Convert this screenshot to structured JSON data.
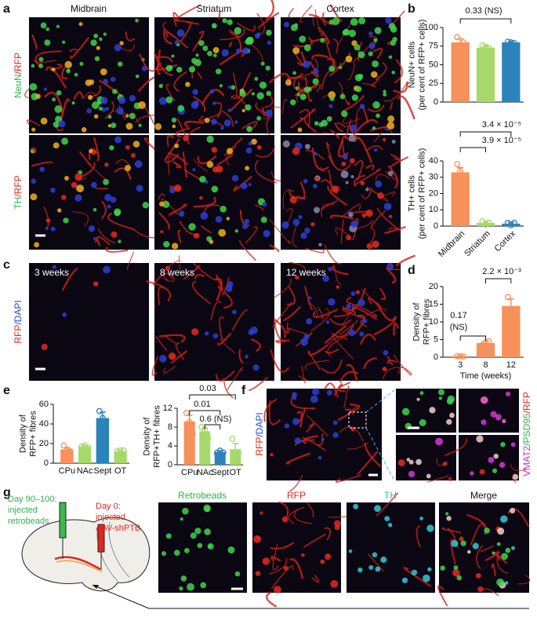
{
  "letters": [
    "a",
    "b",
    "c",
    "d",
    "e",
    "f",
    "g"
  ],
  "panel_a": {
    "columns": [
      "Midbrain",
      "Striatum",
      "Cortex"
    ],
    "rows": [
      [
        "NeuN",
        "/RFP"
      ],
      [
        "TH",
        "/RFP"
      ]
    ]
  },
  "panel_c": {
    "times": [
      "3 weeks",
      "8 weeks",
      "12 weeks"
    ],
    "row": [
      "RFP",
      "/DAPI"
    ]
  },
  "panel_f": {
    "left": [
      "RFP",
      "/DAPI"
    ],
    "right": [
      "VMAT2",
      "/PSD95",
      "/RFP"
    ]
  },
  "panel_g": {
    "retro": [
      "Day 90–100:",
      "injected",
      "retrobeads"
    ],
    "aav": [
      "Day 0:",
      "injected",
      "AAV-shPTB"
    ],
    "channels": [
      "Retrobeads",
      "RFP",
      "TH",
      "Merge"
    ]
  },
  "chart_data": [
    {
      "type": "bar",
      "ylabel": [
        "NeuN+ cells",
        "(per cent of RFP+ cells)"
      ],
      "categories": [
        null,
        null,
        null
      ],
      "values": [
        80,
        73,
        80
      ],
      "errors": [
        5,
        3,
        1
      ],
      "points": [
        [
          87,
          73,
          80
        ],
        [
          76,
          74,
          72
        ],
        [
          81,
          80,
          79
        ]
      ],
      "colors": [
        "#f7905a",
        "#a6d96a",
        "#2b83ba"
      ],
      "ylim": [
        0,
        100
      ],
      "yticks": [
        0,
        25,
        50,
        75,
        100
      ],
      "annotations": [
        "0.33 (NS)"
      ]
    },
    {
      "type": "bar",
      "ylabel": [
        "TH+ cells",
        "(per cent of RFP+ cells)"
      ],
      "categories": [
        "Midbrain",
        "Striatum",
        "Cortex"
      ],
      "values": [
        33,
        2,
        1.5
      ],
      "errors": [
        3,
        1,
        0.8
      ],
      "points": [
        [
          38,
          34,
          28
        ],
        [
          3,
          1,
          2
        ],
        [
          2,
          0.5,
          2
        ]
      ],
      "colors": [
        "#f7905a",
        "#a6d96a",
        "#2b83ba"
      ],
      "ylim": [
        0,
        40
      ],
      "yticks": [
        0,
        10,
        20,
        30,
        40
      ],
      "annotations": [
        "3.4 × 10⁻⁵",
        "3.9 × 10⁻⁵"
      ]
    },
    {
      "type": "bar",
      "ylabel": [
        "Density of",
        "RFP+ fibres"
      ],
      "xlabel": "Time (weeks)",
      "categories": [
        "3",
        "8",
        "12"
      ],
      "values": [
        0.3,
        4,
        14.5
      ],
      "errors": [
        0.2,
        0.6,
        2
      ],
      "points": [
        [
          0.3,
          0.3,
          0.2
        ],
        [
          3.5,
          4,
          4.5
        ],
        [
          17,
          13,
          13
        ]
      ],
      "colors": [
        "#f7905a",
        "#f7905a",
        "#f7905a"
      ],
      "ylim": [
        0,
        20
      ],
      "yticks": [
        0,
        5,
        10,
        15,
        20
      ],
      "annotations": [
        "0.17",
        "(NS)",
        "2.2 × 10⁻³"
      ]
    },
    {
      "type": "bar",
      "ylabel": [
        "Density of",
        "RFP+ fibres"
      ],
      "categories": [
        "CPu",
        "NAc",
        "Sept",
        "OT"
      ],
      "values": [
        14,
        17,
        46,
        12
      ],
      "errors": [
        2,
        1,
        6,
        1
      ],
      "points": [
        [
          18,
          13,
          12
        ],
        [
          17,
          18,
          16
        ],
        [
          53,
          46,
          38
        ],
        [
          12,
          13,
          13
        ]
      ],
      "colors": [
        "#f7905a",
        "#a6d96a",
        "#2b83ba",
        "#a6d96a"
      ],
      "ylim": [
        0,
        60
      ],
      "yticks": [
        0,
        20,
        40,
        60
      ],
      "annotations": []
    },
    {
      "type": "bar",
      "ylabel": [
        "Density of",
        "RFP+TH+ fibres"
      ],
      "categories": [
        "CPu",
        "NAc",
        "Sept",
        "OT"
      ],
      "values": [
        9.2,
        7.1,
        2.7,
        3.3
      ],
      "errors": [
        1.3,
        0.8,
        0.3,
        1.2
      ],
      "points": [
        [
          11,
          9,
          6.5
        ],
        [
          8,
          7.5,
          5.6
        ],
        [
          2.5,
          3,
          2.6
        ],
        [
          5.5,
          2,
          2.5
        ]
      ],
      "colors": [
        "#f7905a",
        "#a6d96a",
        "#2b83ba",
        "#a6d96a"
      ],
      "ylim": [
        0,
        12
      ],
      "yticks": [
        0,
        4,
        8,
        12
      ],
      "annotations": [
        "0.03",
        "0.01",
        "0.6 (NS)"
      ]
    }
  ]
}
